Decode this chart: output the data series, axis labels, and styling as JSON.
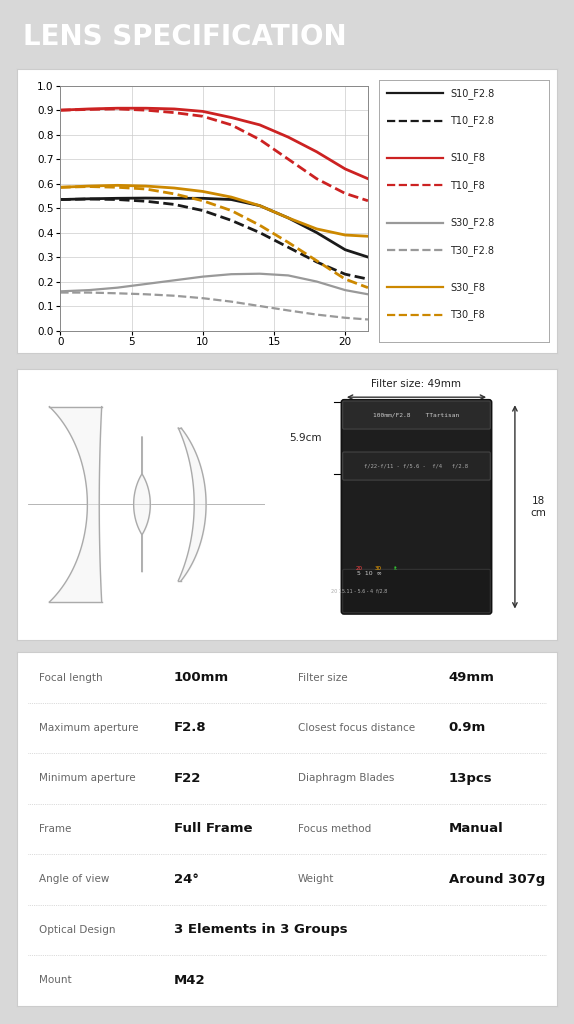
{
  "title": "LENS SPECIFICATION",
  "title_bg": "#1a1a1a",
  "title_color": "#ffffff",
  "page_bg": "#d8d8d8",
  "panel_bg": "#ffffff",
  "panel_border": "#cccccc",
  "specs": [
    {
      "label": "Focal length",
      "value": "100mm",
      "label2": "Filter size",
      "value2": "49mm"
    },
    {
      "label": "Maximum aperture",
      "value": "F2.8",
      "label2": "Closest focus distance",
      "value2": "0.9m"
    },
    {
      "label": "Minimum aperture",
      "value": "F22",
      "label2": "Diaphragm Blades",
      "value2": "13pcs"
    },
    {
      "label": "Frame",
      "value": "Full Frame",
      "label2": "Focus method",
      "value2": "Manual"
    },
    {
      "label": "Angle of view",
      "value": "24°",
      "label2": "Weight",
      "value2": "Around 307g"
    },
    {
      "label": "Optical Design",
      "value": "3 Elements in 3 Groups",
      "label2": "",
      "value2": ""
    },
    {
      "label": "Mount",
      "value": "M42",
      "label2": "",
      "value2": ""
    }
  ],
  "legend_entries": [
    {
      "label": "S10_F2.8",
      "color": "#1a1a1a",
      "ls": "-"
    },
    {
      "label": "T10_F2.8",
      "color": "#1a1a1a",
      "ls": "--"
    },
    {
      "label": "S10_F8",
      "color": "#cc2222",
      "ls": "-"
    },
    {
      "label": "T10_F8",
      "color": "#cc2222",
      "ls": "--"
    },
    {
      "label": "S30_F2.8",
      "color": "#999999",
      "ls": "-"
    },
    {
      "label": "T30_F2.8",
      "color": "#999999",
      "ls": "--"
    },
    {
      "label": "S30_F8",
      "color": "#cc8800",
      "ls": "-"
    },
    {
      "label": "T30_F8",
      "color": "#cc8800",
      "ls": "--"
    }
  ],
  "mtf_curves": [
    {
      "name": "S10_F2.8",
      "color": "#1a1a1a",
      "ls": "-",
      "lw": 2.0,
      "x": [
        0,
        2,
        4,
        6,
        8,
        10,
        12,
        14,
        16,
        18,
        20,
        21.6
      ],
      "y": [
        0.535,
        0.538,
        0.54,
        0.541,
        0.54,
        0.54,
        0.535,
        0.51,
        0.46,
        0.4,
        0.33,
        0.3
      ]
    },
    {
      "name": "T10_F2.8",
      "color": "#1a1a1a",
      "ls": "--",
      "lw": 2.0,
      "x": [
        0,
        2,
        4,
        6,
        8,
        10,
        12,
        14,
        16,
        18,
        20,
        21.6
      ],
      "y": [
        0.535,
        0.537,
        0.535,
        0.528,
        0.515,
        0.49,
        0.45,
        0.4,
        0.34,
        0.28,
        0.23,
        0.21
      ]
    },
    {
      "name": "S10_F8",
      "color": "#cc2222",
      "ls": "-",
      "lw": 2.0,
      "x": [
        0,
        2,
        4,
        6,
        8,
        10,
        12,
        14,
        16,
        18,
        20,
        21.6
      ],
      "y": [
        0.9,
        0.905,
        0.908,
        0.908,
        0.905,
        0.895,
        0.87,
        0.84,
        0.79,
        0.73,
        0.66,
        0.62
      ]
    },
    {
      "name": "T10_F8",
      "color": "#cc2222",
      "ls": "--",
      "lw": 2.0,
      "x": [
        0,
        2,
        4,
        6,
        8,
        10,
        12,
        14,
        16,
        18,
        20,
        21.6
      ],
      "y": [
        0.9,
        0.903,
        0.905,
        0.9,
        0.89,
        0.875,
        0.84,
        0.78,
        0.7,
        0.62,
        0.56,
        0.53
      ]
    },
    {
      "name": "S30_F2.8",
      "color": "#999999",
      "ls": "-",
      "lw": 1.6,
      "x": [
        0,
        2,
        4,
        6,
        8,
        10,
        12,
        14,
        16,
        18,
        20,
        21.6
      ],
      "y": [
        0.16,
        0.165,
        0.175,
        0.19,
        0.205,
        0.22,
        0.23,
        0.232,
        0.225,
        0.2,
        0.165,
        0.148
      ]
    },
    {
      "name": "T30_F2.8",
      "color": "#999999",
      "ls": "--",
      "lw": 1.6,
      "x": [
        0,
        2,
        4,
        6,
        8,
        10,
        12,
        14,
        16,
        18,
        20,
        21.6
      ],
      "y": [
        0.155,
        0.155,
        0.152,
        0.148,
        0.142,
        0.132,
        0.118,
        0.1,
        0.082,
        0.065,
        0.052,
        0.045
      ]
    },
    {
      "name": "S30_F8",
      "color": "#cc8800",
      "ls": "-",
      "lw": 2.0,
      "x": [
        0,
        2,
        4,
        6,
        8,
        10,
        12,
        14,
        16,
        18,
        20,
        21.6
      ],
      "y": [
        0.585,
        0.59,
        0.593,
        0.59,
        0.582,
        0.568,
        0.545,
        0.51,
        0.46,
        0.415,
        0.39,
        0.385
      ]
    },
    {
      "name": "T30_F8",
      "color": "#cc8800",
      "ls": "--",
      "lw": 2.0,
      "x": [
        0,
        2,
        4,
        6,
        8,
        10,
        12,
        14,
        16,
        18,
        20,
        21.6
      ],
      "y": [
        0.585,
        0.588,
        0.585,
        0.578,
        0.558,
        0.53,
        0.49,
        0.43,
        0.36,
        0.285,
        0.21,
        0.175
      ]
    }
  ]
}
